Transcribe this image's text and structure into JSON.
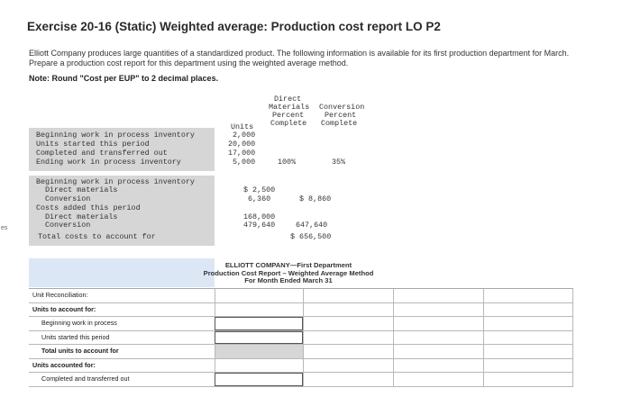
{
  "sidebar": {
    "fragment": "es"
  },
  "title": "Exercise 20-16 (Static) Weighted average: Production cost report LO P2",
  "problem": {
    "text": "Elliott Company produces large quantities of a standardized product. The following information is available for its first production department for March. Prepare a production cost report for this department using the weighted average method.",
    "note": "Note: Round \"Cost per EUP\" to 2 decimal places."
  },
  "data_table": {
    "header_dm": [
      "Direct",
      "Materials",
      "Percent",
      "Complete"
    ],
    "header_conv": [
      "Conversion",
      "Percent",
      "Complete"
    ],
    "header_units": "Units",
    "rows": [
      {
        "label": "Beginning work in process inventory",
        "units": "2,000"
      },
      {
        "label": "Units started this period",
        "units": "20,000"
      },
      {
        "label": "Completed and transferred out",
        "units": "17,000"
      },
      {
        "label": "Ending work in process inventory",
        "units": "5,000",
        "dm_pct": "100%",
        "conv_pct": "35%"
      }
    ],
    "cost_rows": [
      {
        "label": "Beginning work in process inventory"
      },
      {
        "label": "Direct materials",
        "amount": "$ 2,500"
      },
      {
        "label": "Conversion",
        "amount": "6,360",
        "total": "$ 8,860"
      },
      {
        "label": "Costs added this period"
      },
      {
        "label": "Direct materials",
        "amount": "168,000"
      },
      {
        "label": "Conversion",
        "amount": "479,640",
        "total": "647,640"
      },
      {
        "label": "Total costs to account for",
        "total": "$ 656,500"
      }
    ]
  },
  "report": {
    "company": "ELLIOTT COMPANY—First Department",
    "title": "Production Cost Report – Weighted Average Method",
    "period": "For Month Ended March 31"
  },
  "reconciliation": {
    "rows": [
      {
        "label": "Unit Reconciliation:",
        "style": "plain"
      },
      {
        "label": "Units to account for:",
        "style": "plain"
      },
      {
        "label": "Beginning work in process",
        "style": "indent"
      },
      {
        "label": "Units started this period",
        "style": "indent"
      },
      {
        "label": "Total units to account for",
        "style": "total"
      },
      {
        "label": "Units accounted for:",
        "style": "plain"
      },
      {
        "label": "Completed and transferred out",
        "style": "indent"
      }
    ]
  }
}
